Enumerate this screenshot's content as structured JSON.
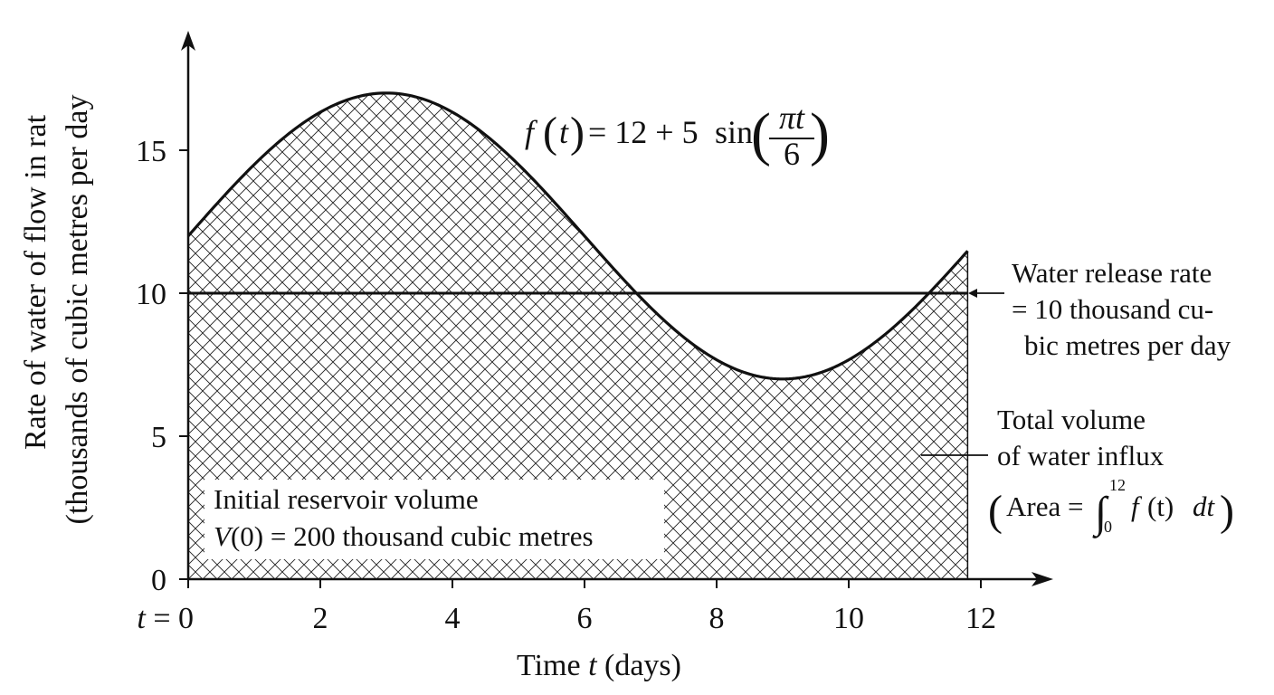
{
  "chart_data": {
    "type": "line",
    "function": "f(t) = 12 + 5 sin(πt/6)",
    "x_range": [
      0,
      12
    ],
    "y_range": [
      0,
      18
    ],
    "x_ticks": [
      0,
      2,
      4,
      6,
      8,
      10,
      12
    ],
    "y_ticks": [
      0,
      5,
      10,
      15
    ],
    "x_tick_labels": [
      "t = 0",
      "2",
      "4",
      "6",
      "8",
      "10",
      "12"
    ],
    "y_tick_labels": [
      "0",
      "5",
      "10",
      "15"
    ],
    "xlabel": {
      "pre": "Time ",
      "var": "t",
      "post": " (days)"
    },
    "ylabel": {
      "line1": "Rate of water of flow in rat",
      "line2": "(thousands of cubic metres per day"
    },
    "series": [
      {
        "x": [
          0,
          1,
          2,
          3,
          4,
          5,
          6,
          7,
          8,
          9,
          10,
          11,
          12
        ],
        "values": [
          12.0,
          14.5,
          16.33,
          17.0,
          16.33,
          14.5,
          12.0,
          9.5,
          7.67,
          7.0,
          7.67,
          9.5,
          12.0
        ]
      },
      {
        "x": [
          0,
          12
        ],
        "values": [
          10,
          10
        ]
      }
    ],
    "shaded_region": {
      "x_range": [
        0,
        12
      ],
      "pattern": "crosshatch"
    },
    "formula": {
      "lhs_f": "f",
      "lhs_t": "t",
      "rhs_prefix": "= 12 + 5",
      "fn": "sin",
      "numerator": "πt",
      "denominator": "6"
    },
    "annotations": {
      "release": {
        "lines": [
          "Water release rate",
          "= 10 thousand cu-",
          "bic metres per day"
        ]
      },
      "influx": {
        "line1": "Total volume",
        "line2": "of water influx",
        "area_prefix": "Area =",
        "integral_sign": "∫",
        "upper_limit": "12",
        "lower_limit": "0",
        "integrand": "f",
        "integrand_var": "(t)",
        "differential": "dt"
      },
      "initial": {
        "line1": "Initial reservoir volume",
        "v_var": "V",
        "line2_rest": "(0) = 200 thousand cubic metres"
      }
    },
    "grid": false,
    "legend": "none"
  }
}
